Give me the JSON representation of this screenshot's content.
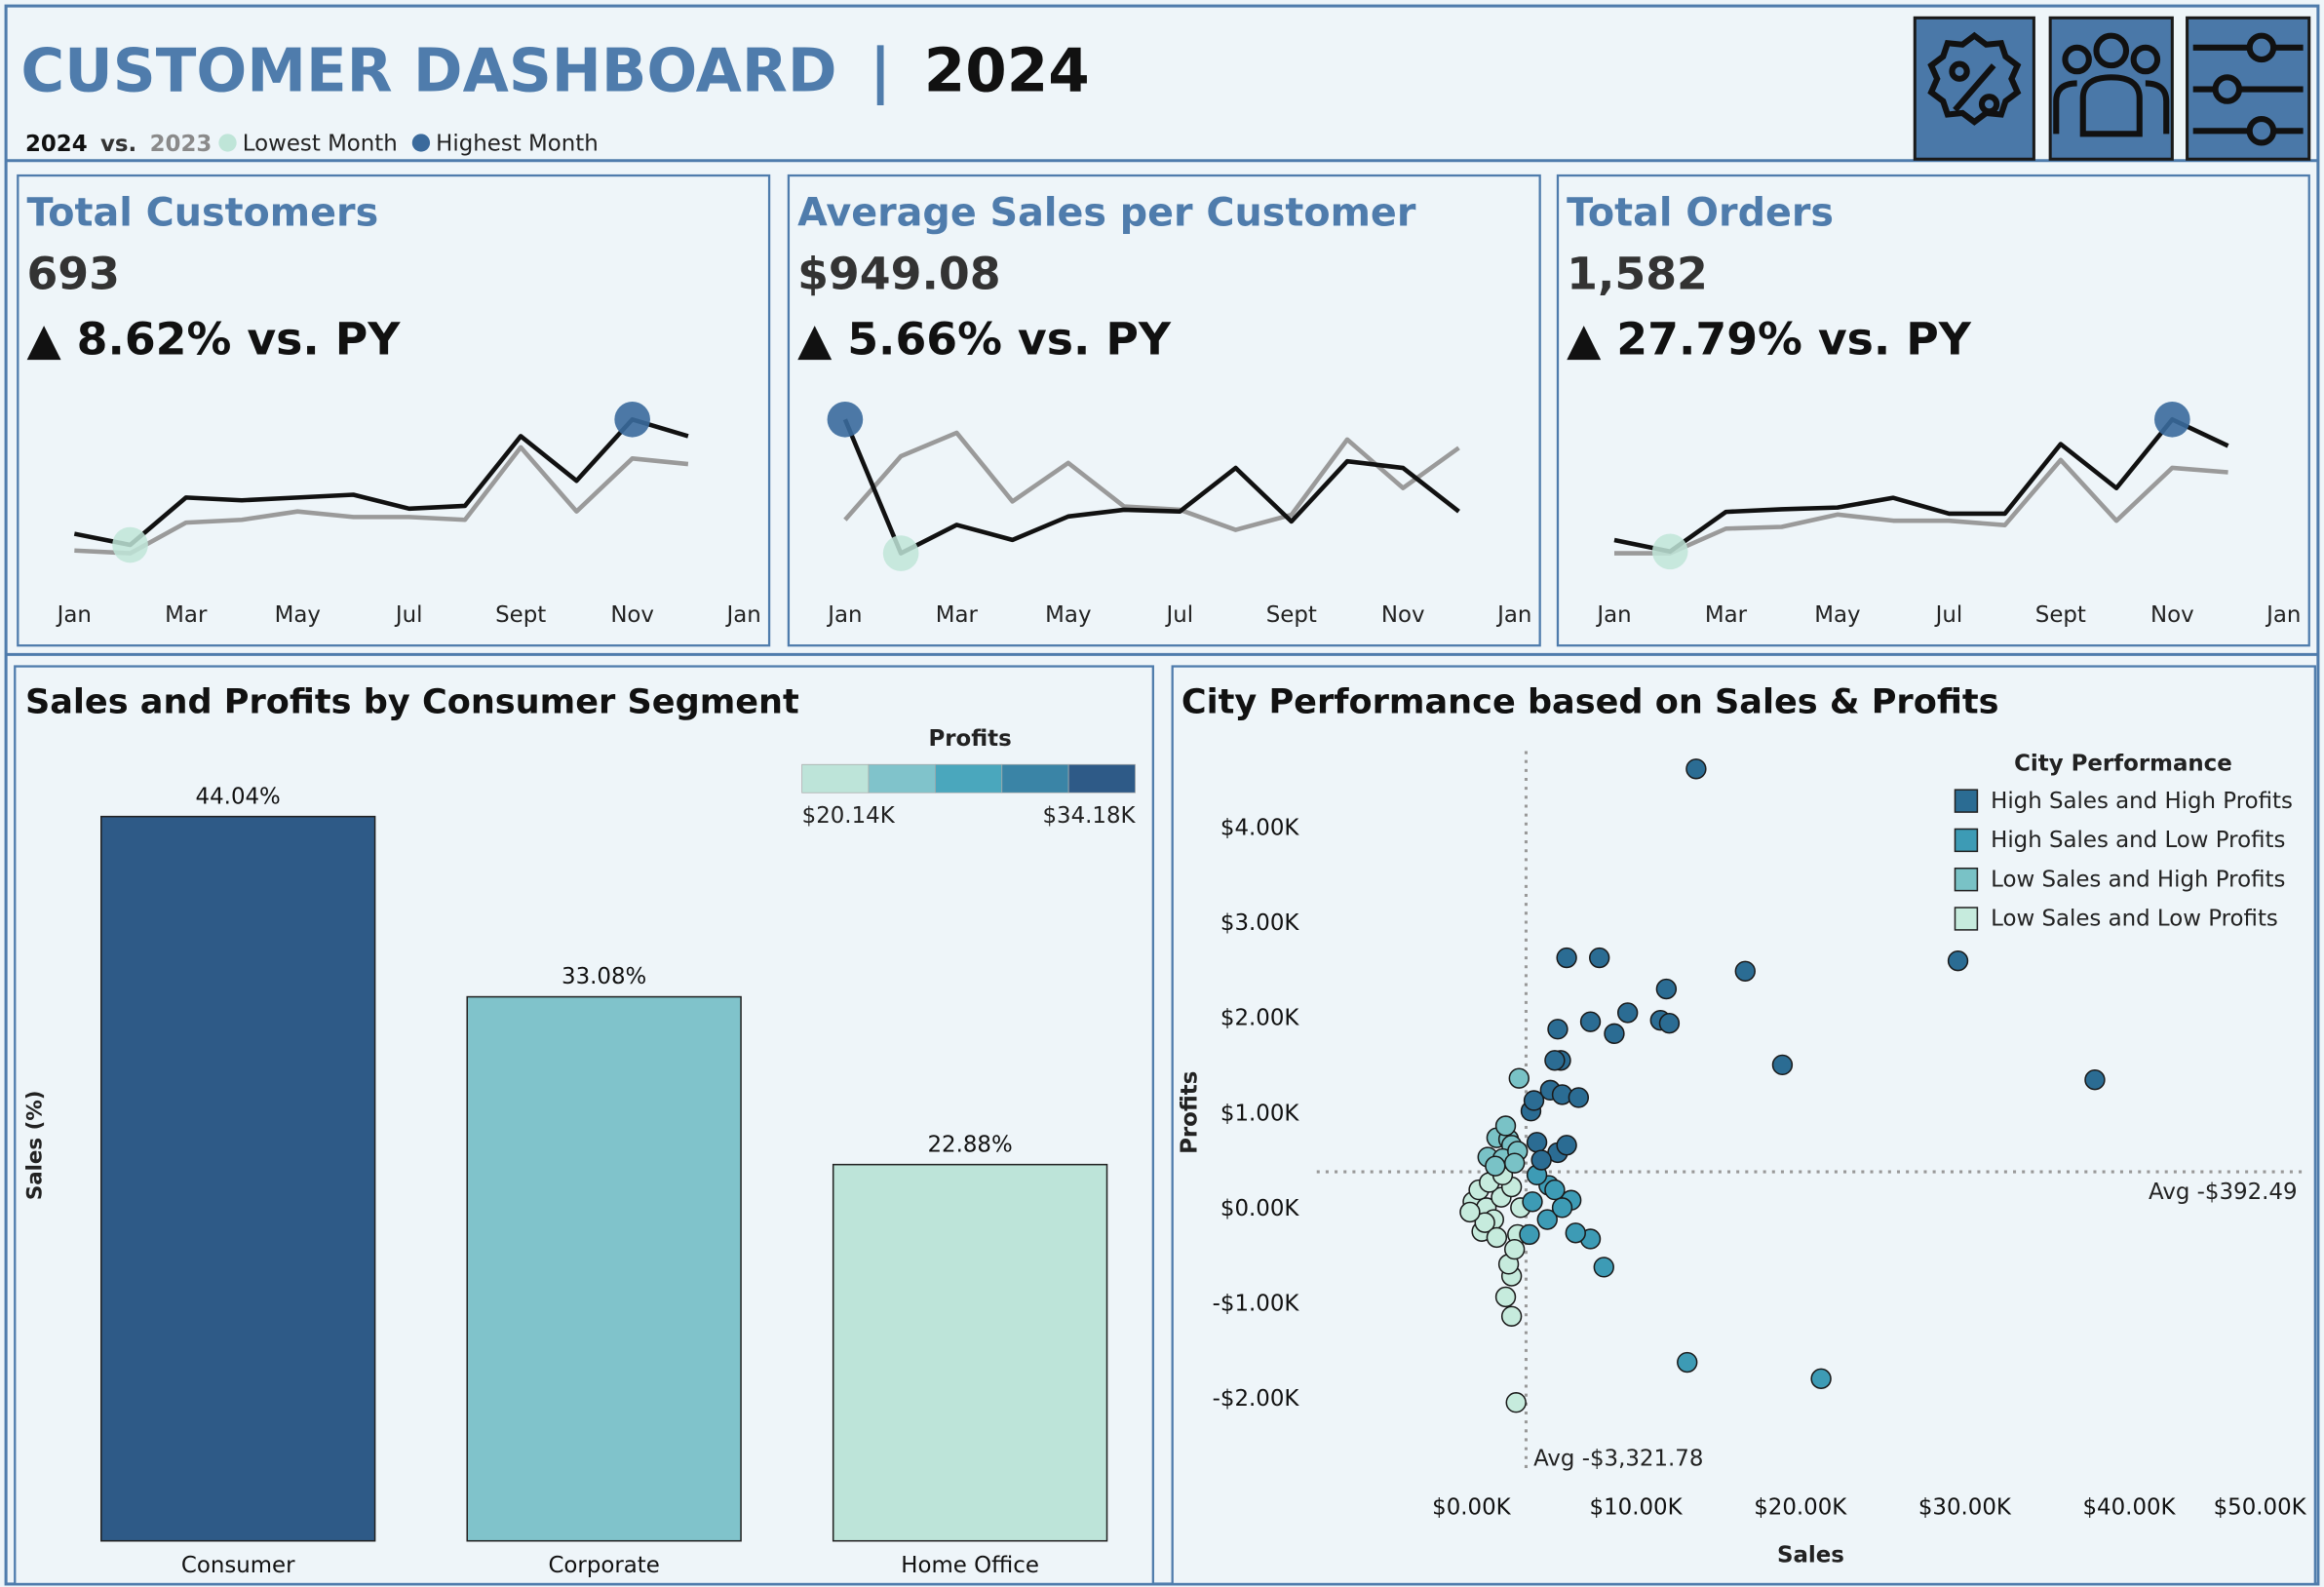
{
  "header": {
    "title": "CUSTOMER DASHBOARD",
    "separator": "|",
    "year": "2024",
    "vs": "vs.",
    "markers": [
      {
        "label": "Lowest Month",
        "color": "#bfe5d8"
      },
      {
        "label": "Highest Month",
        "color": "#3a6a9c"
      }
    ]
  },
  "chart_data": [
    {
      "type": "line",
      "title": "Total Customers",
      "value": "693",
      "change": "▲ 8.62% vs. PY",
      "categories": [
        "Jan",
        null,
        "Mar",
        null,
        "May",
        null,
        "Jul",
        null,
        "Sept",
        null,
        "Nov",
        null,
        "Jan"
      ],
      "series": [
        {
          "name": "2024",
          "color": "#111111",
          "values": [
            39,
            35,
            52,
            51,
            52,
            53,
            48,
            49,
            74,
            58,
            80,
            74,
            null
          ]
        },
        {
          "name": "2023",
          "color": "#9a9a9a",
          "values": [
            33,
            32,
            43,
            44,
            47,
            45,
            45,
            44,
            70,
            47,
            66,
            64,
            null
          ]
        }
      ]
    },
    {
      "type": "line",
      "title": "Average Sales per Customer",
      "value": "$949.08",
      "change": "▲ 5.66% vs. PY",
      "categories": [
        "Jan",
        null,
        "Mar",
        null,
        "May",
        null,
        "Jul",
        null,
        "Sept",
        null,
        "Nov",
        null,
        "Jan"
      ],
      "series": [
        {
          "color": "#111111",
          "values": [
            1400,
            600,
            770,
            680,
            820,
            860,
            850,
            1110,
            790,
            1150,
            1110,
            850,
            null
          ]
        },
        {
          "color": "#9a9a9a",
          "values": [
            800,
            1180,
            1320,
            910,
            1140,
            880,
            860,
            740,
            830,
            1280,
            990,
            1230,
            null
          ]
        }
      ]
    },
    {
      "type": "line",
      "title": "Total Orders",
      "value": "1,582",
      "change": "▲ 27.79% vs. PY",
      "categories": [
        "Jan",
        null,
        "Mar",
        null,
        "May",
        null,
        "Jul",
        null,
        "Sept",
        null,
        "Nov",
        null,
        "Jan"
      ],
      "series": [
        {
          "color": "#111111",
          "values": [
            93,
            80,
            125,
            128,
            130,
            141,
            123,
            123,
            202,
            152,
            230,
            200,
            null
          ]
        },
        {
          "color": "#9a9a9a",
          "values": [
            78,
            78,
            106,
            108,
            122,
            115,
            115,
            110,
            184,
            115,
            175,
            170,
            null
          ]
        }
      ]
    },
    {
      "type": "bar",
      "title": "Sales and Profits by Consumer Segment",
      "y_label": "Sales (%)",
      "categories": [
        "Consumer",
        "Corporate",
        "Home Office"
      ],
      "values": [
        44.04,
        33.08,
        22.88
      ],
      "value_labels": [
        "44.04%",
        "33.08%",
        "22.88%"
      ],
      "colors": [
        "#2e5a87",
        "#80c3cb",
        "#bde4d9"
      ],
      "legend": {
        "title": "Profits",
        "min": {
          "value": 20140,
          "label": "$20.14K"
        },
        "max": {
          "value": 34180,
          "label": "$34.18K"
        },
        "colors": [
          "#bde4d9",
          "#80c3cb",
          "#4aa7bd",
          "#3a84a6",
          "#2e5a87"
        ]
      }
    },
    {
      "type": "scatter",
      "title": "City Performance based on Sales & Profits",
      "x_label": "Sales",
      "y_label": "Profits",
      "legend_title": "City Performance",
      "xlim": [
        -9410,
        50770
      ],
      "ylim": [
        -2766,
        4812
      ],
      "xticks": [
        {
          "value": 0,
          "label": "$0.00K"
        },
        {
          "value": 10000,
          "label": "$10.00K"
        },
        {
          "value": 20000,
          "label": "$20.00K"
        },
        {
          "value": 30000,
          "label": "$30.00K"
        },
        {
          "value": 40000,
          "label": "$40.00K"
        },
        {
          "value": 50000,
          "label": "$50.00K"
        }
      ],
      "yticks": [
        {
          "value": -2000,
          "label": "-$2.00K"
        },
        {
          "value": -1000,
          "label": "-$1.00K"
        },
        {
          "value": 0,
          "label": "$0.00K"
        },
        {
          "value": 1000,
          "label": "$1.00K"
        },
        {
          "value": 2000,
          "label": "$2.00K"
        },
        {
          "value": 3000,
          "label": "$3.00K"
        },
        {
          "value": 4000,
          "label": "$4.00K"
        }
      ],
      "x_ref": {
        "value": 3321.78,
        "label": "Avg -$3,321.78"
      },
      "y_ref": {
        "value": 392.49,
        "label": "Avg -$392.49"
      },
      "series": [
        {
          "name": "High Sales and High Profits",
          "color": "#2b6c93",
          "x": [
            13665,
            5792,
            7783,
            16652,
            29593,
            11855,
            9502,
            7240,
            11493,
            12036,
            5249,
            8688,
            18914,
            37919,
            5430,
            5068,
            4796,
            5520,
            6516,
            3620,
            3801,
            5249,
            3982,
            5792,
            4253
          ],
          "values": [
            4625,
            2641,
            2641,
            2500,
            2609,
            2313,
            2063,
            1969,
            1984,
            1953,
            1891,
            1844,
            1516,
            1359,
            1563,
            1563,
            1250,
            1203,
            1172,
            1031,
            1141,
            594,
            703,
            672,
            516
          ]
        },
        {
          "name": "High Sales and Low Profits",
          "color": "#3d9bb5",
          "x": [
            13122,
            21267,
            8054,
            7240,
            6335,
            6063,
            4706,
            3982,
            3710,
            4615,
            3529,
            5068,
            5520
          ],
          "values": [
            -1609,
            -1781,
            -609,
            -313,
            -250,
            94,
            250,
            359,
            78,
            -109,
            -266,
            203,
            16
          ]
        },
        {
          "name": "Low Sales and High Profits",
          "color": "#79c2c6",
          "x": [
            2896,
            1538,
            2262,
            2443,
            995,
            1900,
            2805,
            1448,
            2624,
            2081
          ],
          "values": [
            1375,
            750,
            734,
            672,
            547,
            531,
            609,
            453,
            484,
            875
          ]
        },
        {
          "name": "Low Sales and Low Profits",
          "color": "#c6ebdd",
          "x": [
            2715,
            2443,
            2081,
            2443,
            2262,
            633,
            90,
            452,
            905,
            1357,
            1810,
            2443,
            2805,
            814,
            1086,
            1900,
            -90,
            1538,
            2986,
            2624
          ],
          "values": [
            -2031,
            -1125,
            -922,
            -703,
            -578,
            -234,
            78,
            203,
            16,
            -109,
            125,
            234,
            -266,
            -141,
            281,
            359,
            -31,
            -297,
            16,
            -422
          ]
        }
      ]
    }
  ]
}
